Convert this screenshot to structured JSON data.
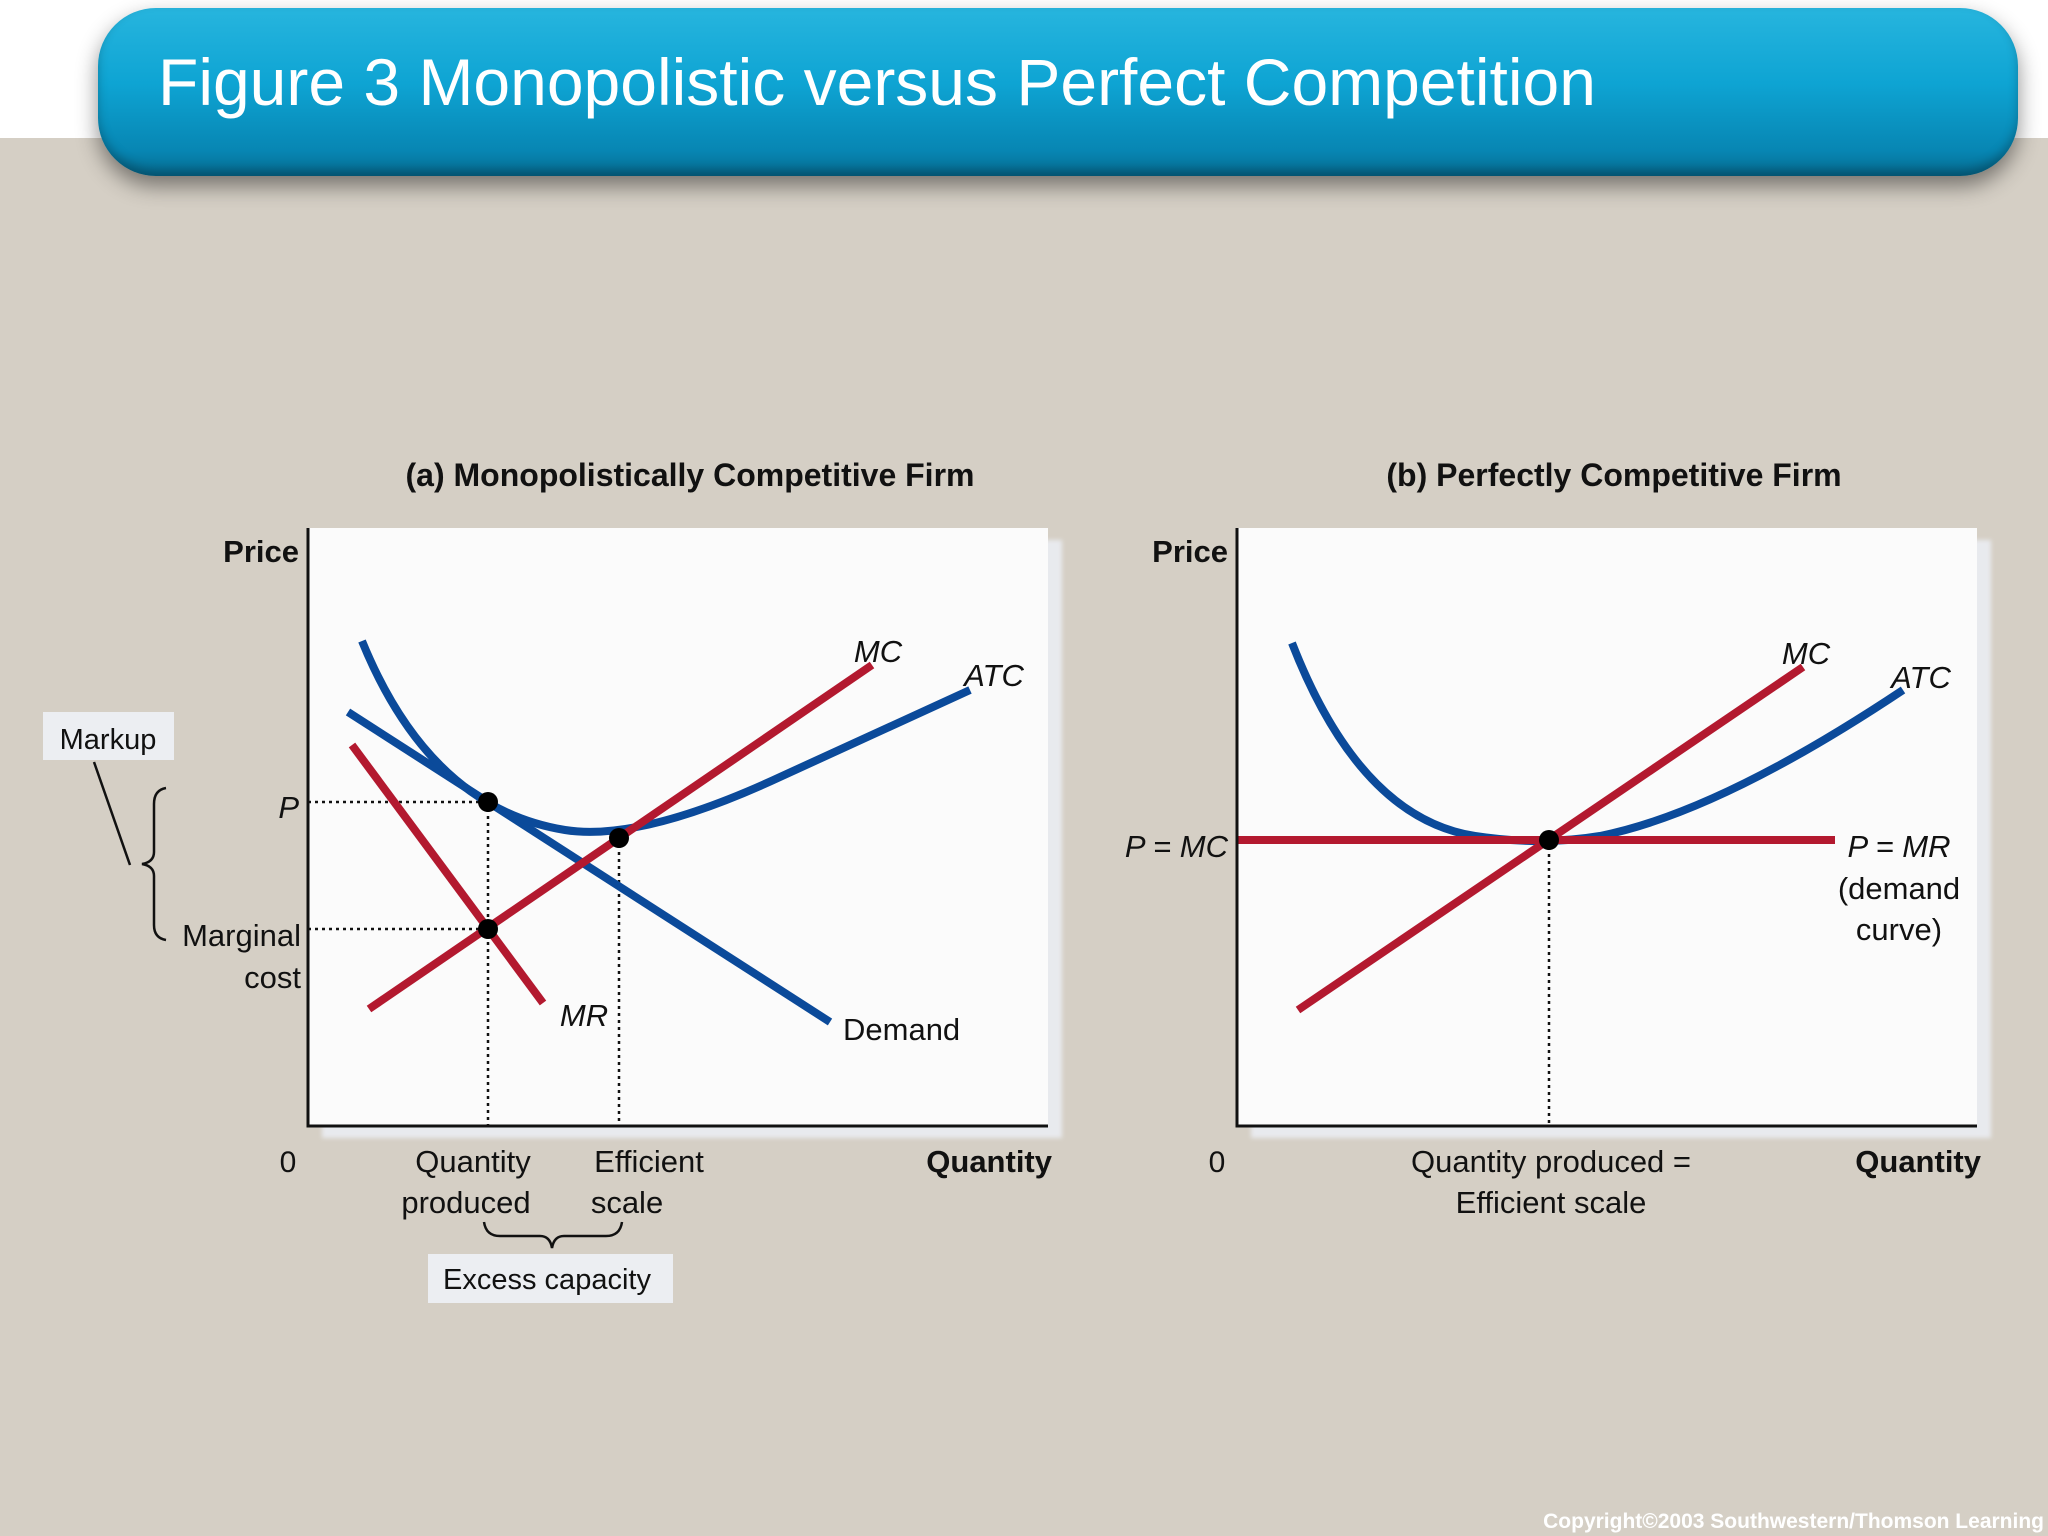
{
  "title": "Figure 3 Monopolistic versus Perfect Competition",
  "copyright": "Copyright©2003  Southwestern/Thomson Learning",
  "colors": {
    "cost_curve": "#b3192f",
    "demand_curve": "#0b4a9a",
    "banner": "#0ea4d3",
    "panel": "#fbfbfb"
  },
  "panel_a": {
    "title": "(a) Monopolistically Competitive Firm",
    "y_axis": "Price",
    "x_axis": "Quantity",
    "origin": "0",
    "label_p": "P",
    "label_marginal": "Marginal",
    "label_cost": "cost",
    "curve_mc": "MC",
    "curve_atc": "ATC",
    "curve_mr": "MR",
    "curve_demand": "Demand",
    "q_produced_1": "Quantity",
    "q_produced_2": "produced",
    "eff_scale_1": "Efficient",
    "eff_scale_2": "scale",
    "markup": "Markup",
    "excess_capacity": "Excess capacity"
  },
  "panel_b": {
    "title": "(b) Perfectly Competitive Firm",
    "y_axis": "Price",
    "x_axis": "Quantity",
    "origin": "0",
    "label_p_mc": "P = MC",
    "curve_mc": "MC",
    "curve_atc": "ATC",
    "label_p_mr": "P = MR",
    "label_demand_1": "(demand",
    "label_demand_2": "curve)",
    "q_label_1": "Quantity produced =",
    "q_label_2": "Efficient scale"
  }
}
